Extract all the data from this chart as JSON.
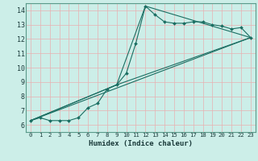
{
  "xlabel": "Humidex (Indice chaleur)",
  "bg_color": "#cceee8",
  "grid_color": "#e8b0b0",
  "line_color": "#1a6e62",
  "xlim": [
    -0.5,
    23.5
  ],
  "ylim": [
    5.5,
    14.5
  ],
  "xticks": [
    0,
    1,
    2,
    3,
    4,
    5,
    6,
    7,
    8,
    9,
    10,
    11,
    12,
    13,
    14,
    15,
    16,
    17,
    18,
    19,
    20,
    21,
    22,
    23
  ],
  "yticks": [
    6,
    7,
    8,
    9,
    10,
    11,
    12,
    13,
    14
  ],
  "series_main": {
    "x": [
      0,
      1,
      2,
      3,
      4,
      5,
      6,
      7,
      8,
      9,
      10,
      11,
      12,
      13,
      14,
      15,
      16,
      17,
      18,
      19,
      20,
      21,
      22,
      23
    ],
    "y": [
      6.3,
      6.5,
      6.3,
      6.3,
      6.3,
      6.5,
      7.2,
      7.5,
      8.5,
      8.8,
      9.6,
      11.7,
      14.3,
      13.7,
      13.2,
      13.1,
      13.1,
      13.2,
      13.2,
      13.0,
      12.9,
      12.7,
      12.8,
      12.1
    ]
  },
  "series_lines": [
    {
      "x": [
        0,
        23
      ],
      "y": [
        6.3,
        12.1
      ]
    },
    {
      "x": [
        0,
        9,
        12,
        23
      ],
      "y": [
        6.3,
        8.8,
        14.3,
        12.1
      ]
    },
    {
      "x": [
        0,
        9,
        23
      ],
      "y": [
        6.3,
        8.8,
        12.1
      ]
    }
  ]
}
